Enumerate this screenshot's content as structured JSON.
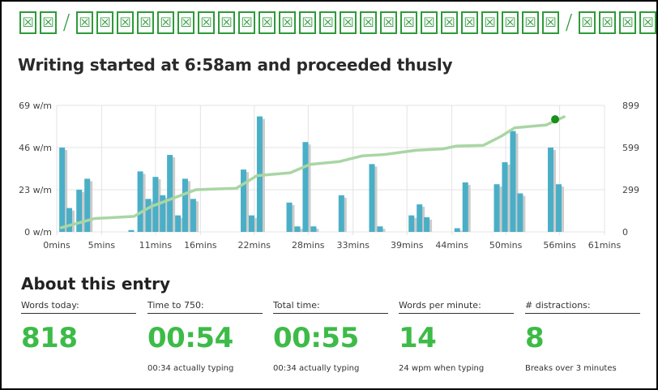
{
  "header_glyphs": [
    "X",
    "X",
    "/",
    "X",
    "X",
    "X",
    "X",
    "X",
    "X",
    "X",
    "X",
    "X",
    "X",
    "X",
    "X",
    "X",
    "X",
    "X",
    "X",
    "X",
    "X",
    "X",
    "X",
    "X",
    "X",
    "X",
    "X",
    "/",
    "X",
    "X",
    "X",
    "X",
    "X"
  ],
  "page_title": "Writing started at 6:58am and proceeded thusly",
  "chart_data": {
    "type": "bar",
    "title": "",
    "y_left": {
      "ticks": [
        "0 w/m",
        "23 w/m",
        "46 w/m",
        "69 w/m"
      ],
      "range": [
        0,
        69
      ]
    },
    "y_right": {
      "ticks": [
        "0",
        "299",
        "599",
        "899"
      ],
      "range": [
        0,
        899
      ]
    },
    "x_axis": {
      "labels": [
        "0mins",
        "5mins",
        "11mins",
        "16mins",
        "22mins",
        "28mins",
        "33mins",
        "39mins",
        "44mins",
        "50mins",
        "56mins",
        "61mins"
      ],
      "label_minutes": [
        0,
        5,
        11,
        16,
        22,
        28,
        33,
        39,
        44,
        50,
        56,
        61
      ],
      "range": [
        0,
        61
      ]
    },
    "bars": [
      {
        "minute": 0.6,
        "wpm": 46
      },
      {
        "minute": 1.4,
        "wpm": 13
      },
      {
        "minute": 2.5,
        "wpm": 23
      },
      {
        "minute": 3.4,
        "wpm": 29
      },
      {
        "minute": 8.3,
        "wpm": 1
      },
      {
        "minute": 9.3,
        "wpm": 33
      },
      {
        "minute": 10.2,
        "wpm": 18
      },
      {
        "minute": 11.0,
        "wpm": 30
      },
      {
        "minute": 11.8,
        "wpm": 20
      },
      {
        "minute": 12.6,
        "wpm": 42
      },
      {
        "minute": 13.5,
        "wpm": 9
      },
      {
        "minute": 14.3,
        "wpm": 29
      },
      {
        "minute": 15.2,
        "wpm": 18
      },
      {
        "minute": 20.8,
        "wpm": 34
      },
      {
        "minute": 21.7,
        "wpm": 9
      },
      {
        "minute": 22.6,
        "wpm": 63
      },
      {
        "minute": 25.9,
        "wpm": 16
      },
      {
        "minute": 26.8,
        "wpm": 3
      },
      {
        "minute": 27.7,
        "wpm": 49
      },
      {
        "minute": 28.6,
        "wpm": 3
      },
      {
        "minute": 31.7,
        "wpm": 20
      },
      {
        "minute": 35.1,
        "wpm": 37
      },
      {
        "minute": 36.0,
        "wpm": 3
      },
      {
        "minute": 39.5,
        "wpm": 9
      },
      {
        "minute": 40.4,
        "wpm": 15
      },
      {
        "minute": 41.2,
        "wpm": 8
      },
      {
        "minute": 44.6,
        "wpm": 2
      },
      {
        "minute": 45.5,
        "wpm": 27
      },
      {
        "minute": 49.0,
        "wpm": 26
      },
      {
        "minute": 49.9,
        "wpm": 38
      },
      {
        "minute": 50.8,
        "wpm": 55
      },
      {
        "minute": 51.6,
        "wpm": 21
      },
      {
        "minute": 55.0,
        "wpm": 46
      },
      {
        "minute": 55.9,
        "wpm": 26
      }
    ],
    "cumulative_words": [
      {
        "minute": 0.5,
        "words": 30
      },
      {
        "minute": 4.2,
        "words": 95
      },
      {
        "minute": 8.6,
        "words": 110
      },
      {
        "minute": 10.5,
        "words": 180
      },
      {
        "minute": 13.0,
        "words": 240
      },
      {
        "minute": 15.5,
        "words": 300
      },
      {
        "minute": 20.0,
        "words": 310
      },
      {
        "minute": 22.3,
        "words": 400
      },
      {
        "minute": 26.0,
        "words": 420
      },
      {
        "minute": 28.2,
        "words": 480
      },
      {
        "minute": 31.5,
        "words": 500
      },
      {
        "minute": 34.0,
        "words": 540
      },
      {
        "minute": 36.5,
        "words": 550
      },
      {
        "minute": 40.0,
        "words": 580
      },
      {
        "minute": 43.0,
        "words": 590
      },
      {
        "minute": 44.5,
        "words": 610
      },
      {
        "minute": 47.5,
        "words": 615
      },
      {
        "minute": 49.5,
        "words": 680
      },
      {
        "minute": 51.0,
        "words": 740
      },
      {
        "minute": 54.5,
        "words": 760
      },
      {
        "minute": 56.5,
        "words": 818
      }
    ],
    "end_marker": {
      "minute": 55.5,
      "words": 800
    },
    "colors": {
      "bar": "#4aafc6",
      "bar_shadow": "#cccccc",
      "line": "#a9d6a4",
      "marker": "#1a8f1a",
      "grid": "#e3e3e3"
    },
    "grid": true
  },
  "about": {
    "title": "About this entry",
    "stats": [
      {
        "label": "Words today:",
        "value": "818",
        "sub": ""
      },
      {
        "label": "Time to 750:",
        "value": "00:54",
        "sub": "00:34 actually typing"
      },
      {
        "label": "Total time:",
        "value": "00:55",
        "sub": "00:34 actually typing"
      },
      {
        "label": "Words per minute:",
        "value": "14",
        "sub": "24 wpm when typing"
      },
      {
        "label": "# distractions:",
        "value": "8",
        "sub": "Breaks over 3 minutes"
      }
    ]
  }
}
